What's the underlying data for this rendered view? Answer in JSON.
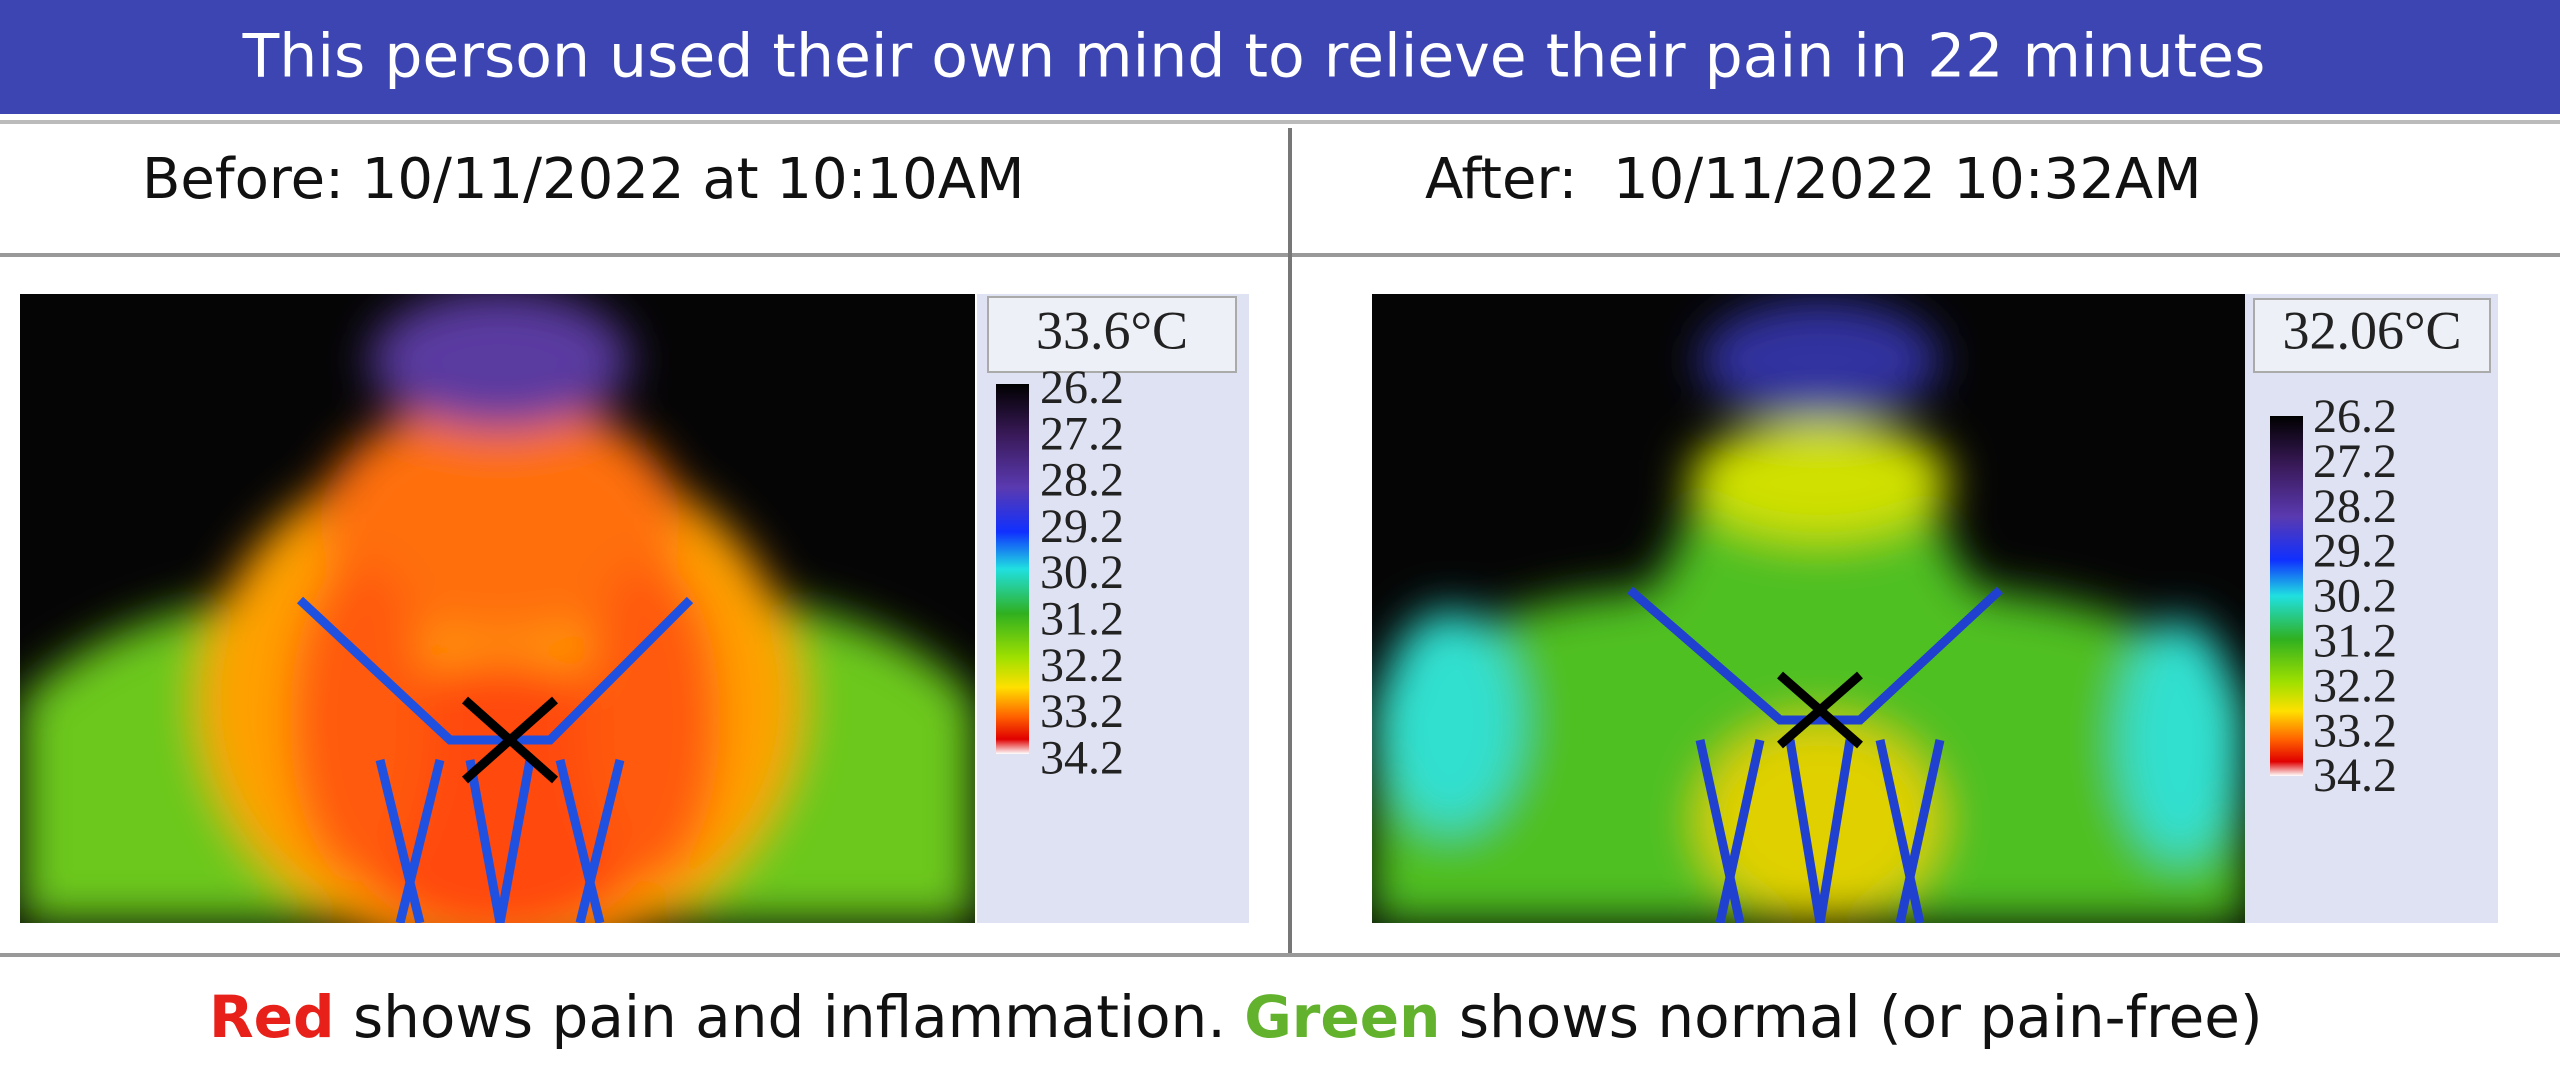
{
  "title": "This person used their own mind to relieve their pain in 22 minutes",
  "panels": [
    {
      "label": "Before: 10/11/2022 at 10:10AM",
      "temperature": "33.6°C",
      "scale": [
        "26.2",
        "27.2",
        "28.2",
        "29.2",
        "30.2",
        "31.2",
        "32.2",
        "33.2",
        "34.2"
      ]
    },
    {
      "label": "After:  10/11/2022 10:32AM",
      "temperature": "32.06°C",
      "scale": [
        "26.2",
        "27.2",
        "28.2",
        "29.2",
        "30.2",
        "31.2",
        "32.2",
        "33.2",
        "34.2"
      ]
    }
  ],
  "caption": {
    "red": "Red",
    "text1": "shows pain and inflammation.",
    "green": "Green",
    "text2": "shows normal (or pain-free)"
  }
}
